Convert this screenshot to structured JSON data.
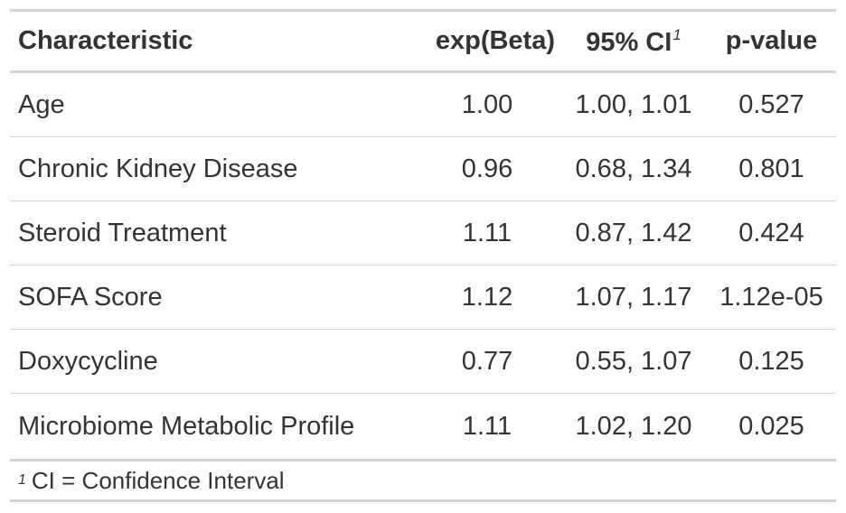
{
  "table": {
    "headers": {
      "characteristic": "Characteristic",
      "beta": "exp(Beta)",
      "ci": "95% CI",
      "ci_marker": "1",
      "p": "p-value"
    },
    "rows": [
      {
        "characteristic": "Age",
        "beta": "1.00",
        "ci": "1.00, 1.01",
        "p": "0.527"
      },
      {
        "characteristic": "Chronic Kidney Disease",
        "beta": "0.96",
        "ci": "0.68, 1.34",
        "p": "0.801"
      },
      {
        "characteristic": "Steroid Treatment",
        "beta": "1.11",
        "ci": "0.87, 1.42",
        "p": "0.424"
      },
      {
        "characteristic": "SOFA Score",
        "beta": "1.12",
        "ci": "1.07, 1.17",
        "p": "1.12e-05"
      },
      {
        "characteristic": "Doxycycline",
        "beta": "0.77",
        "ci": "0.55, 1.07",
        "p": "0.125"
      },
      {
        "characteristic": "Microbiome Metabolic Profile",
        "beta": "1.11",
        "ci": "1.02, 1.20",
        "p": "0.025"
      }
    ],
    "footnote": {
      "marker": "1",
      "text": "CI = Confidence Interval"
    }
  },
  "colors": {
    "text": "#333333",
    "rule": "#d3d3d3"
  }
}
